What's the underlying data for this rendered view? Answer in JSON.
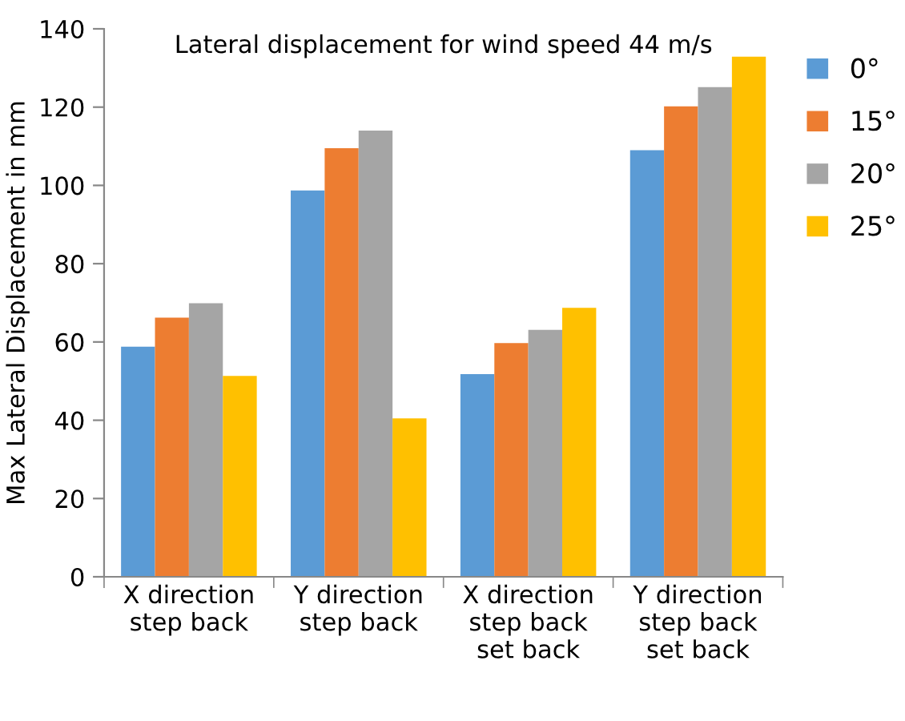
{
  "chart_data": {
    "type": "bar",
    "title": "Lateral displacement for wind speed 44 m/s",
    "ylabel": "Max Lateral Displacement in mm",
    "categories": [
      "X direction\nstep back",
      "Y direction\nstep back",
      "X direction\nstep back\nset back",
      "Y direction\nstep back\nset back"
    ],
    "series": [
      {
        "name": "0°",
        "color": "#5b9bd5",
        "values": [
          58.8,
          98.7,
          51.8,
          109
        ]
      },
      {
        "name": "15°",
        "color": "#ed7d31",
        "values": [
          66.2,
          109.5,
          59.7,
          120.2
        ]
      },
      {
        "name": "20°",
        "color": "#a5a5a5",
        "values": [
          69.9,
          114,
          63.1,
          125.1
        ]
      },
      {
        "name": "25°",
        "color": "#ffc000",
        "values": [
          51.3,
          40.5,
          68.7,
          132.9
        ]
      }
    ],
    "ylim": [
      0,
      140
    ],
    "yticks": [
      0,
      20,
      40,
      60,
      80,
      100,
      120,
      140
    ],
    "grid": false,
    "legend": "right"
  }
}
